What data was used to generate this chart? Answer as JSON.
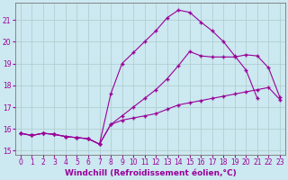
{
  "background_color": "#cce8f0",
  "grid_color": "#aacccc",
  "line_color": "#990099",
  "marker": "+",
  "markersize": 3,
  "linewidth": 0.8,
  "xlabel": "Windchill (Refroidissement éolien,°C)",
  "xlabel_fontsize": 6.5,
  "tick_fontsize": 5.5,
  "xlim": [
    -0.5,
    23.5
  ],
  "ylim": [
    14.8,
    21.8
  ],
  "yticks": [
    15,
    16,
    17,
    18,
    19,
    20,
    21
  ],
  "xticks": [
    0,
    1,
    2,
    3,
    4,
    5,
    6,
    7,
    8,
    9,
    10,
    11,
    12,
    13,
    14,
    15,
    16,
    17,
    18,
    19,
    20,
    21,
    22,
    23
  ],
  "curve_peak_x": [
    0,
    1,
    2,
    3,
    4,
    5,
    6,
    7,
    8,
    9,
    10,
    11,
    12,
    13,
    14,
    15,
    16,
    17,
    18,
    19,
    20,
    21
  ],
  "curve_peak_y": [
    15.8,
    15.7,
    15.8,
    15.75,
    15.65,
    15.6,
    15.55,
    15.3,
    17.6,
    19.0,
    19.5,
    20.0,
    20.5,
    21.1,
    21.45,
    21.35,
    20.9,
    20.5,
    20.0,
    19.35,
    18.7,
    17.4
  ],
  "curve_mid_x": [
    0,
    1,
    2,
    3,
    4,
    5,
    6,
    7,
    8,
    9,
    10,
    11,
    12,
    13,
    14,
    15,
    16,
    17,
    18,
    19,
    20,
    21,
    22,
    23
  ],
  "curve_mid_y": [
    15.8,
    15.7,
    15.8,
    15.75,
    15.65,
    15.6,
    15.55,
    15.3,
    16.2,
    16.6,
    17.0,
    17.4,
    17.8,
    18.3,
    18.9,
    19.55,
    19.35,
    19.3,
    19.3,
    19.3,
    19.4,
    19.35,
    18.8,
    17.45
  ],
  "curve_low_x": [
    0,
    1,
    2,
    3,
    4,
    5,
    6,
    7,
    8,
    9,
    10,
    11,
    12,
    13,
    14,
    15,
    16,
    17,
    18,
    19,
    20,
    21,
    22,
    23
  ],
  "curve_low_y": [
    15.8,
    15.7,
    15.8,
    15.75,
    15.65,
    15.6,
    15.55,
    15.3,
    16.2,
    16.4,
    16.5,
    16.6,
    16.7,
    16.9,
    17.1,
    17.2,
    17.3,
    17.4,
    17.5,
    17.6,
    17.7,
    17.8,
    17.9,
    17.35
  ]
}
